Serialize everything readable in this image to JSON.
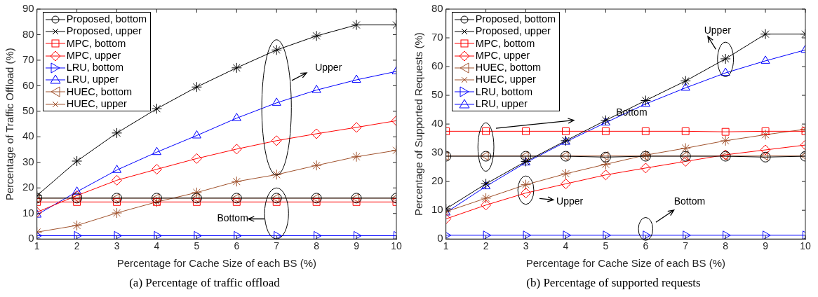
{
  "chart_data": [
    {
      "type": "line",
      "title": "(a) Percentage of traffic offload",
      "xlabel": "Percentage for Cache Size of each BS (%)",
      "ylabel": "Percentage of Traffic Offload (%)",
      "x": [
        1,
        2,
        3,
        4,
        5,
        6,
        7,
        8,
        9,
        10
      ],
      "xlim": [
        1,
        10
      ],
      "xticks": [
        1,
        2,
        3,
        4,
        5,
        6,
        7,
        8,
        9,
        10
      ],
      "ylim": [
        0,
        90
      ],
      "yticks": [
        0,
        10,
        20,
        30,
        40,
        50,
        60,
        70,
        80,
        90
      ],
      "legend": "top left",
      "annotations": [
        "Upper",
        "Bottom"
      ],
      "series": [
        {
          "name": "Proposed, bottom",
          "color": "#000000",
          "marker": "circle",
          "values": [
            16,
            16,
            16,
            16,
            16,
            16,
            16,
            16,
            16,
            16
          ]
        },
        {
          "name": "Proposed, upper",
          "color": "#000000",
          "marker": "cross",
          "values": [
            17,
            30.5,
            41.5,
            51,
            59.5,
            67,
            74,
            79.5,
            83.8,
            83.8
          ]
        },
        {
          "name": "MPC, bottom",
          "color": "#ff0000",
          "marker": "square",
          "values": [
            14.5,
            14.5,
            14.5,
            14.5,
            14.5,
            14.5,
            14.5,
            14.5,
            14.5,
            14.5
          ]
        },
        {
          "name": "MPC, upper",
          "color": "#ff0000",
          "marker": "diamond",
          "values": [
            10.5,
            17,
            23,
            27.3,
            31.5,
            35.2,
            38.5,
            41.2,
            43.7,
            46.3
          ]
        },
        {
          "name": "LRU, bottom",
          "color": "#0000ff",
          "marker": "triangle-right",
          "values": [
            1.3,
            1.3,
            1.3,
            1.3,
            1.3,
            1.3,
            1.3,
            1.3,
            1.3,
            1.3
          ]
        },
        {
          "name": "LRU, upper",
          "color": "#0000ff",
          "marker": "triangle",
          "values": [
            9.5,
            18.5,
            27,
            34,
            40.5,
            47.3,
            53.3,
            58.3,
            62.3,
            65.6
          ]
        },
        {
          "name": "HUEC, bottom",
          "color": "#a0522d",
          "marker": "triangle-left",
          "values": [
            16,
            16,
            16,
            16,
            16,
            16,
            16,
            16,
            16,
            16
          ]
        },
        {
          "name": "HUEC, upper",
          "color": "#a0522d",
          "marker": "cross",
          "values": [
            2.7,
            5.3,
            10.2,
            14.5,
            18.2,
            22.5,
            25.2,
            28.8,
            32.2,
            34.7
          ]
        }
      ]
    },
    {
      "type": "line",
      "title": "(b) Percentage of supported requests",
      "xlabel": "Percentage for Cache Size of each BS (%)",
      "ylabel": "Percentage of Supported Requests (%)",
      "x": [
        1,
        2,
        3,
        4,
        5,
        6,
        7,
        8,
        9,
        10
      ],
      "xlim": [
        1,
        10
      ],
      "xticks": [
        1,
        2,
        3,
        4,
        5,
        6,
        7,
        8,
        9,
        10
      ],
      "ylim": [
        0,
        80
      ],
      "yticks": [
        0,
        10,
        20,
        30,
        40,
        50,
        60,
        70,
        80
      ],
      "legend": "top left",
      "annotations": [
        "Upper",
        "Bottom",
        "Upper",
        "Bottom"
      ],
      "series": [
        {
          "name": "Proposed, bottom",
          "color": "#000000",
          "marker": "circle",
          "values": [
            28.8,
            28.8,
            28.8,
            28.8,
            28.5,
            28.8,
            28.8,
            28.8,
            28.5,
            28.8
          ]
        },
        {
          "name": "Proposed, upper",
          "color": "#000000",
          "marker": "cross",
          "values": [
            10.5,
            19.2,
            27,
            34.2,
            41.3,
            48.2,
            55,
            62.7,
            71.3,
            71.3
          ]
        },
        {
          "name": "MPC, bottom",
          "color": "#ff0000",
          "marker": "square",
          "values": [
            37.5,
            37.5,
            37.5,
            37.5,
            37.5,
            37.5,
            37.5,
            37.3,
            37.5,
            37.5
          ]
        },
        {
          "name": "MPC, upper",
          "color": "#ff0000",
          "marker": "diamond",
          "values": [
            7,
            11.8,
            16,
            19.2,
            22.3,
            24.7,
            27,
            29.3,
            31,
            32.7
          ]
        },
        {
          "name": "HUEC, bottom",
          "color": "#a0522d",
          "marker": "triangle-left",
          "values": [
            28.9,
            28.9,
            28.9,
            28.9,
            28.9,
            28.9,
            28.9,
            28.9,
            28.9,
            28.9
          ]
        },
        {
          "name": "HUEC, upper",
          "color": "#a0522d",
          "marker": "cross",
          "values": [
            9.5,
            14.2,
            18.9,
            22.7,
            26,
            29.2,
            31.6,
            34.2,
            36.3,
            38.2
          ]
        },
        {
          "name": "LRU, bottom",
          "color": "#0000ff",
          "marker": "triangle-right",
          "values": [
            1.3,
            1.3,
            1.3,
            1.3,
            1.3,
            1.3,
            1.3,
            1.3,
            1.3,
            1.3
          ]
        },
        {
          "name": "LRU, upper",
          "color": "#0000ff",
          "marker": "triangle",
          "values": [
            9.2,
            18.3,
            26.6,
            33.8,
            40.5,
            47,
            52.6,
            57.8,
            62,
            65.8
          ]
        }
      ]
    }
  ]
}
